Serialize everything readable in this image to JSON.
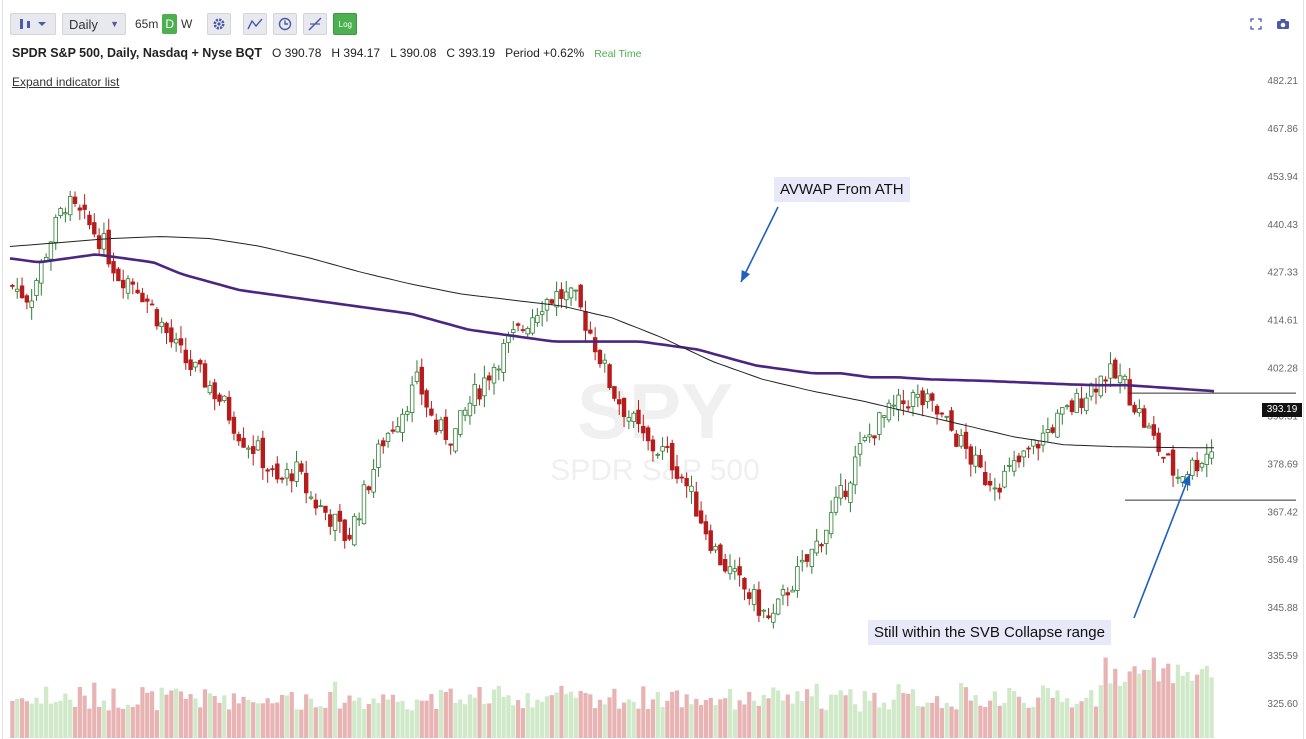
{
  "toolbar": {
    "interval": "Daily",
    "timeframes": [
      "65m",
      "D",
      "W"
    ],
    "log_label": "Log"
  },
  "header": {
    "symbol": "SPDR S&P 500, Daily, Nasdaq + Nyse BQT",
    "open_label": "O",
    "open": "390.78",
    "high_label": "H",
    "high": "394.17",
    "low_label": "L",
    "low": "390.08",
    "close_label": "C",
    "close": "393.19",
    "period_label": "Period",
    "period": "+0.62%",
    "realtime": "Real Time",
    "expand_link": "Expand indicator list"
  },
  "watermark": {
    "symbol": "SPY",
    "name": "SPDR S&P 500"
  },
  "annotations": {
    "avwap": "AVWAP From ATH",
    "svb": "Still within the SVB Collapse range"
  },
  "price_tag": "393.19",
  "colors": {
    "up": "#2e7d32",
    "down": "#b71c1c",
    "ma_purple": "#4a2582",
    "avwap": "#222222",
    "vol_up": "#cfe9c9",
    "vol_down": "#e8b3b3",
    "arrow": "#1f5fbf"
  },
  "chart_data": {
    "type": "candlestick",
    "ylim": [
      320,
      486
    ],
    "y_ticks": [
      "482.21",
      "467.86",
      "453.94",
      "440.43",
      "427.33",
      "414.61",
      "402.28",
      "390.31",
      "378.69",
      "367.42",
      "356.49",
      "345.88",
      "335.59",
      "325.60"
    ],
    "close_path": [
      434,
      431,
      444,
      455,
      451,
      446,
      437,
      435,
      428,
      420,
      414,
      410,
      404,
      396,
      392,
      384,
      388,
      380,
      376,
      370,
      382,
      395,
      402,
      410,
      398,
      396,
      405,
      412,
      419,
      424,
      430,
      432,
      430,
      420,
      408,
      401,
      394,
      392,
      386,
      376,
      366,
      360,
      355,
      349,
      358,
      364,
      372,
      381,
      392,
      399,
      403,
      406,
      404,
      399,
      393,
      386,
      385,
      389,
      394,
      399,
      403,
      408,
      412,
      410,
      401,
      393,
      386,
      389,
      393
    ],
    "ma_line": [
      441,
      440,
      441,
      442,
      441,
      440,
      437,
      435,
      433,
      432,
      431,
      430,
      429,
      428,
      427,
      425,
      423,
      422,
      421,
      420,
      420,
      420,
      420,
      419,
      418,
      416,
      414,
      413,
      412,
      412,
      411,
      411,
      410.5,
      410.3,
      410.1,
      409.8,
      409.5,
      409.2,
      409,
      409,
      408.5,
      408,
      407.5
    ],
    "avwap_line": [
      444,
      445,
      446,
      446.5,
      446,
      444,
      441,
      437.5,
      434.5,
      432,
      430.5,
      429,
      426,
      421,
      415,
      410.5,
      407.5,
      405,
      402,
      399,
      396,
      394,
      393.5,
      393.3,
      393.2
    ],
    "volume_pattern": [
      0.45,
      0.55,
      0.5,
      0.4,
      0.62,
      0.48,
      0.35,
      0.7,
      0.52,
      0.44
    ],
    "svb_range_high": 407,
    "svb_range_low": 380
  }
}
